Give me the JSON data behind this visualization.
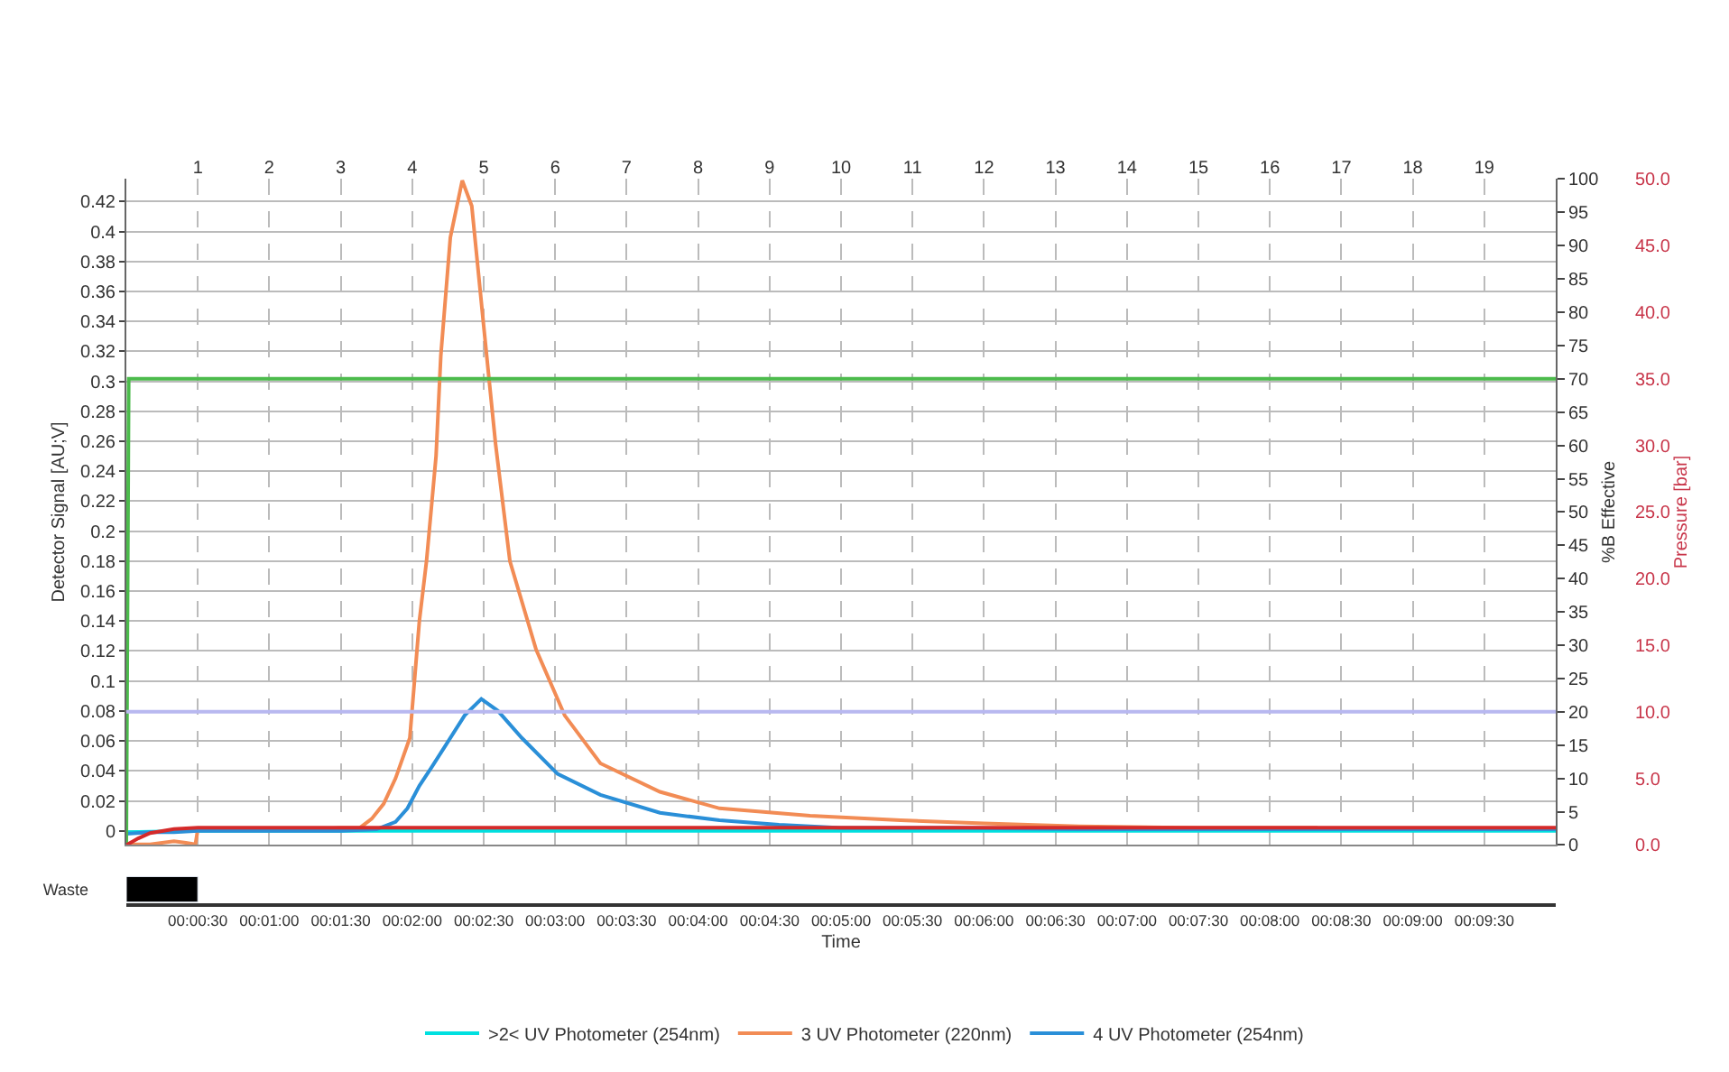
{
  "chart_data": [
    {
      "type": "line",
      "ylabel": "Detector Signal [AU;V]",
      "y2label": "%B Effective",
      "y3label": "Pressure [bar]",
      "xlim": [
        0,
        600
      ],
      "xticks": [
        30,
        60,
        90,
        120,
        150,
        180,
        210,
        240,
        270,
        300,
        330,
        360,
        390,
        420,
        450,
        480,
        510,
        540,
        570
      ],
      "x2lim": [
        0,
        20
      ],
      "x2ticks": [
        1,
        2,
        3,
        4,
        5,
        6,
        7,
        8,
        9,
        10,
        11,
        12,
        13,
        14,
        15,
        16,
        17,
        18,
        19
      ],
      "ylim": [
        -0.0095,
        0.435
      ],
      "yticks": [
        0,
        0.02,
        0.04,
        0.06,
        0.08,
        {
          "value": 0.1,
          "label": "0.1"
        },
        0.12,
        0.14,
        0.16,
        0.18,
        {
          "value": 0.2,
          "label": "0.2"
        },
        0.22,
        0.24,
        0.26,
        0.28,
        {
          "value": 0.3,
          "label": "0.3"
        },
        0.32,
        0.34,
        0.36,
        0.38,
        {
          "value": 0.4,
          "label": "0.4"
        },
        0.42
      ],
      "y2lim": [
        0,
        100
      ],
      "y2ticks": [
        0,
        5,
        10,
        15,
        20,
        25,
        30,
        35,
        40,
        45,
        50,
        55,
        60,
        65,
        70,
        75,
        80,
        85,
        90,
        95,
        100
      ],
      "y3lim": [
        0,
        50
      ],
      "y3ticks": [
        {
          "value": 0,
          "label": "0.0"
        },
        {
          "value": 5,
          "label": "5.0"
        },
        {
          "value": 10,
          "label": "10.0"
        },
        {
          "value": 15,
          "label": "15.0"
        },
        {
          "value": 20,
          "label": "20.0"
        },
        {
          "value": 25,
          "label": "25.0"
        },
        {
          "value": 30,
          "label": "30.0"
        },
        {
          "value": 35,
          "label": "35.0"
        },
        {
          "value": 40,
          "label": "40.0"
        },
        {
          "value": 45,
          "label": "45.0"
        },
        {
          "value": 50,
          "label": "50.0"
        }
      ],
      "grid": true,
      "legend": "bottom",
      "tick_labels": "y",
      "ref_lines": [
        {
          "axis": "y2",
          "value": 20,
          "color": "#b8b8f0"
        }
      ],
      "series": [
        {
          "name": ">2< UV Photometer (254nm)",
          "color": "#00e0e0",
          "x": [
            0,
            30,
            600
          ],
          "values": [
            -0.001,
            0,
            0
          ]
        },
        {
          "name": "3 UV Photometer (220nm)",
          "color": "#f28c55",
          "x": [
            0,
            10,
            20,
            25,
            29,
            30,
            40,
            60,
            80,
            90,
            98,
            103,
            108,
            113,
            119,
            123,
            126,
            130,
            132,
            136,
            141,
            145,
            150,
            155,
            161,
            172,
            184,
            199,
            224,
            249,
            287,
            325,
            360,
            400,
            450,
            500
          ],
          "values": [
            -0.009,
            -0.009,
            -0.007,
            -0.008,
            -0.009,
            0.001,
            0.001,
            0.001,
            0.001,
            0.002,
            0.002,
            0.008,
            0.018,
            0.035,
            0.062,
            0.14,
            0.18,
            0.25,
            0.317,
            0.396,
            0.434,
            0.417,
            0.337,
            0.258,
            0.18,
            0.121,
            0.077,
            0.045,
            0.026,
            0.015,
            0.01,
            0.007,
            0.005,
            0.003,
            0.002,
            0.002
          ]
        },
        {
          "name": "4 UV Photometer (254nm)",
          "color": "#2a8fd8",
          "x": [
            0,
            10,
            20,
            30,
            60,
            90,
            105,
            113,
            118,
            123,
            128,
            134,
            142,
            149,
            156,
            166,
            181,
            199,
            224,
            249,
            274,
            300,
            350,
            400,
            500,
            600
          ],
          "values": [
            -0.002,
            -0.001,
            -0.001,
            0,
            0,
            0,
            0.001,
            0.006,
            0.015,
            0.03,
            0.042,
            0.057,
            0.077,
            0.088,
            0.08,
            0.062,
            0.038,
            0.024,
            0.012,
            0.007,
            0.004,
            0.002,
            0.002,
            0.001,
            0.001,
            0.001
          ]
        },
        {
          "color": "#4cbb4c",
          "axis": "y2",
          "x": [
            0,
            1,
            600
          ],
          "values": [
            0,
            70,
            70
          ]
        },
        {
          "color": "#d42a2a",
          "axis": "y3",
          "x": [
            0,
            5,
            10,
            20,
            30,
            600
          ],
          "values": [
            0,
            0.5,
            0.9,
            1.2,
            1.3,
            1.3
          ]
        }
      ]
    },
    {
      "type": "bar",
      "orientation": "horizontal",
      "categories": [
        "Waste"
      ],
      "values": [
        30
      ],
      "color": "#000000",
      "xlabel": "Time",
      "xlim": [
        0,
        600
      ],
      "xticks": [
        {
          "value": 30,
          "label": "00:00:30"
        },
        {
          "value": 60,
          "label": "00:01:00"
        },
        {
          "value": 90,
          "label": "00:01:30"
        },
        {
          "value": 120,
          "label": "00:02:00"
        },
        {
          "value": 150,
          "label": "00:02:30"
        },
        {
          "value": 180,
          "label": "00:03:00"
        },
        {
          "value": 210,
          "label": "00:03:30"
        },
        {
          "value": 240,
          "label": "00:04:00"
        },
        {
          "value": 270,
          "label": "00:04:30"
        },
        {
          "value": 300,
          "label": "00:05:00"
        },
        {
          "value": 330,
          "label": "00:05:30"
        },
        {
          "value": 360,
          "label": "00:06:00"
        },
        {
          "value": 390,
          "label": "00:06:30"
        },
        {
          "value": 420,
          "label": "00:07:00"
        },
        {
          "value": 450,
          "label": "00:07:30"
        },
        {
          "value": 480,
          "label": "00:08:00"
        },
        {
          "value": 510,
          "label": "00:08:30"
        },
        {
          "value": 540,
          "label": "00:09:00"
        },
        {
          "value": 570,
          "label": "00:09:30"
        }
      ]
    }
  ]
}
